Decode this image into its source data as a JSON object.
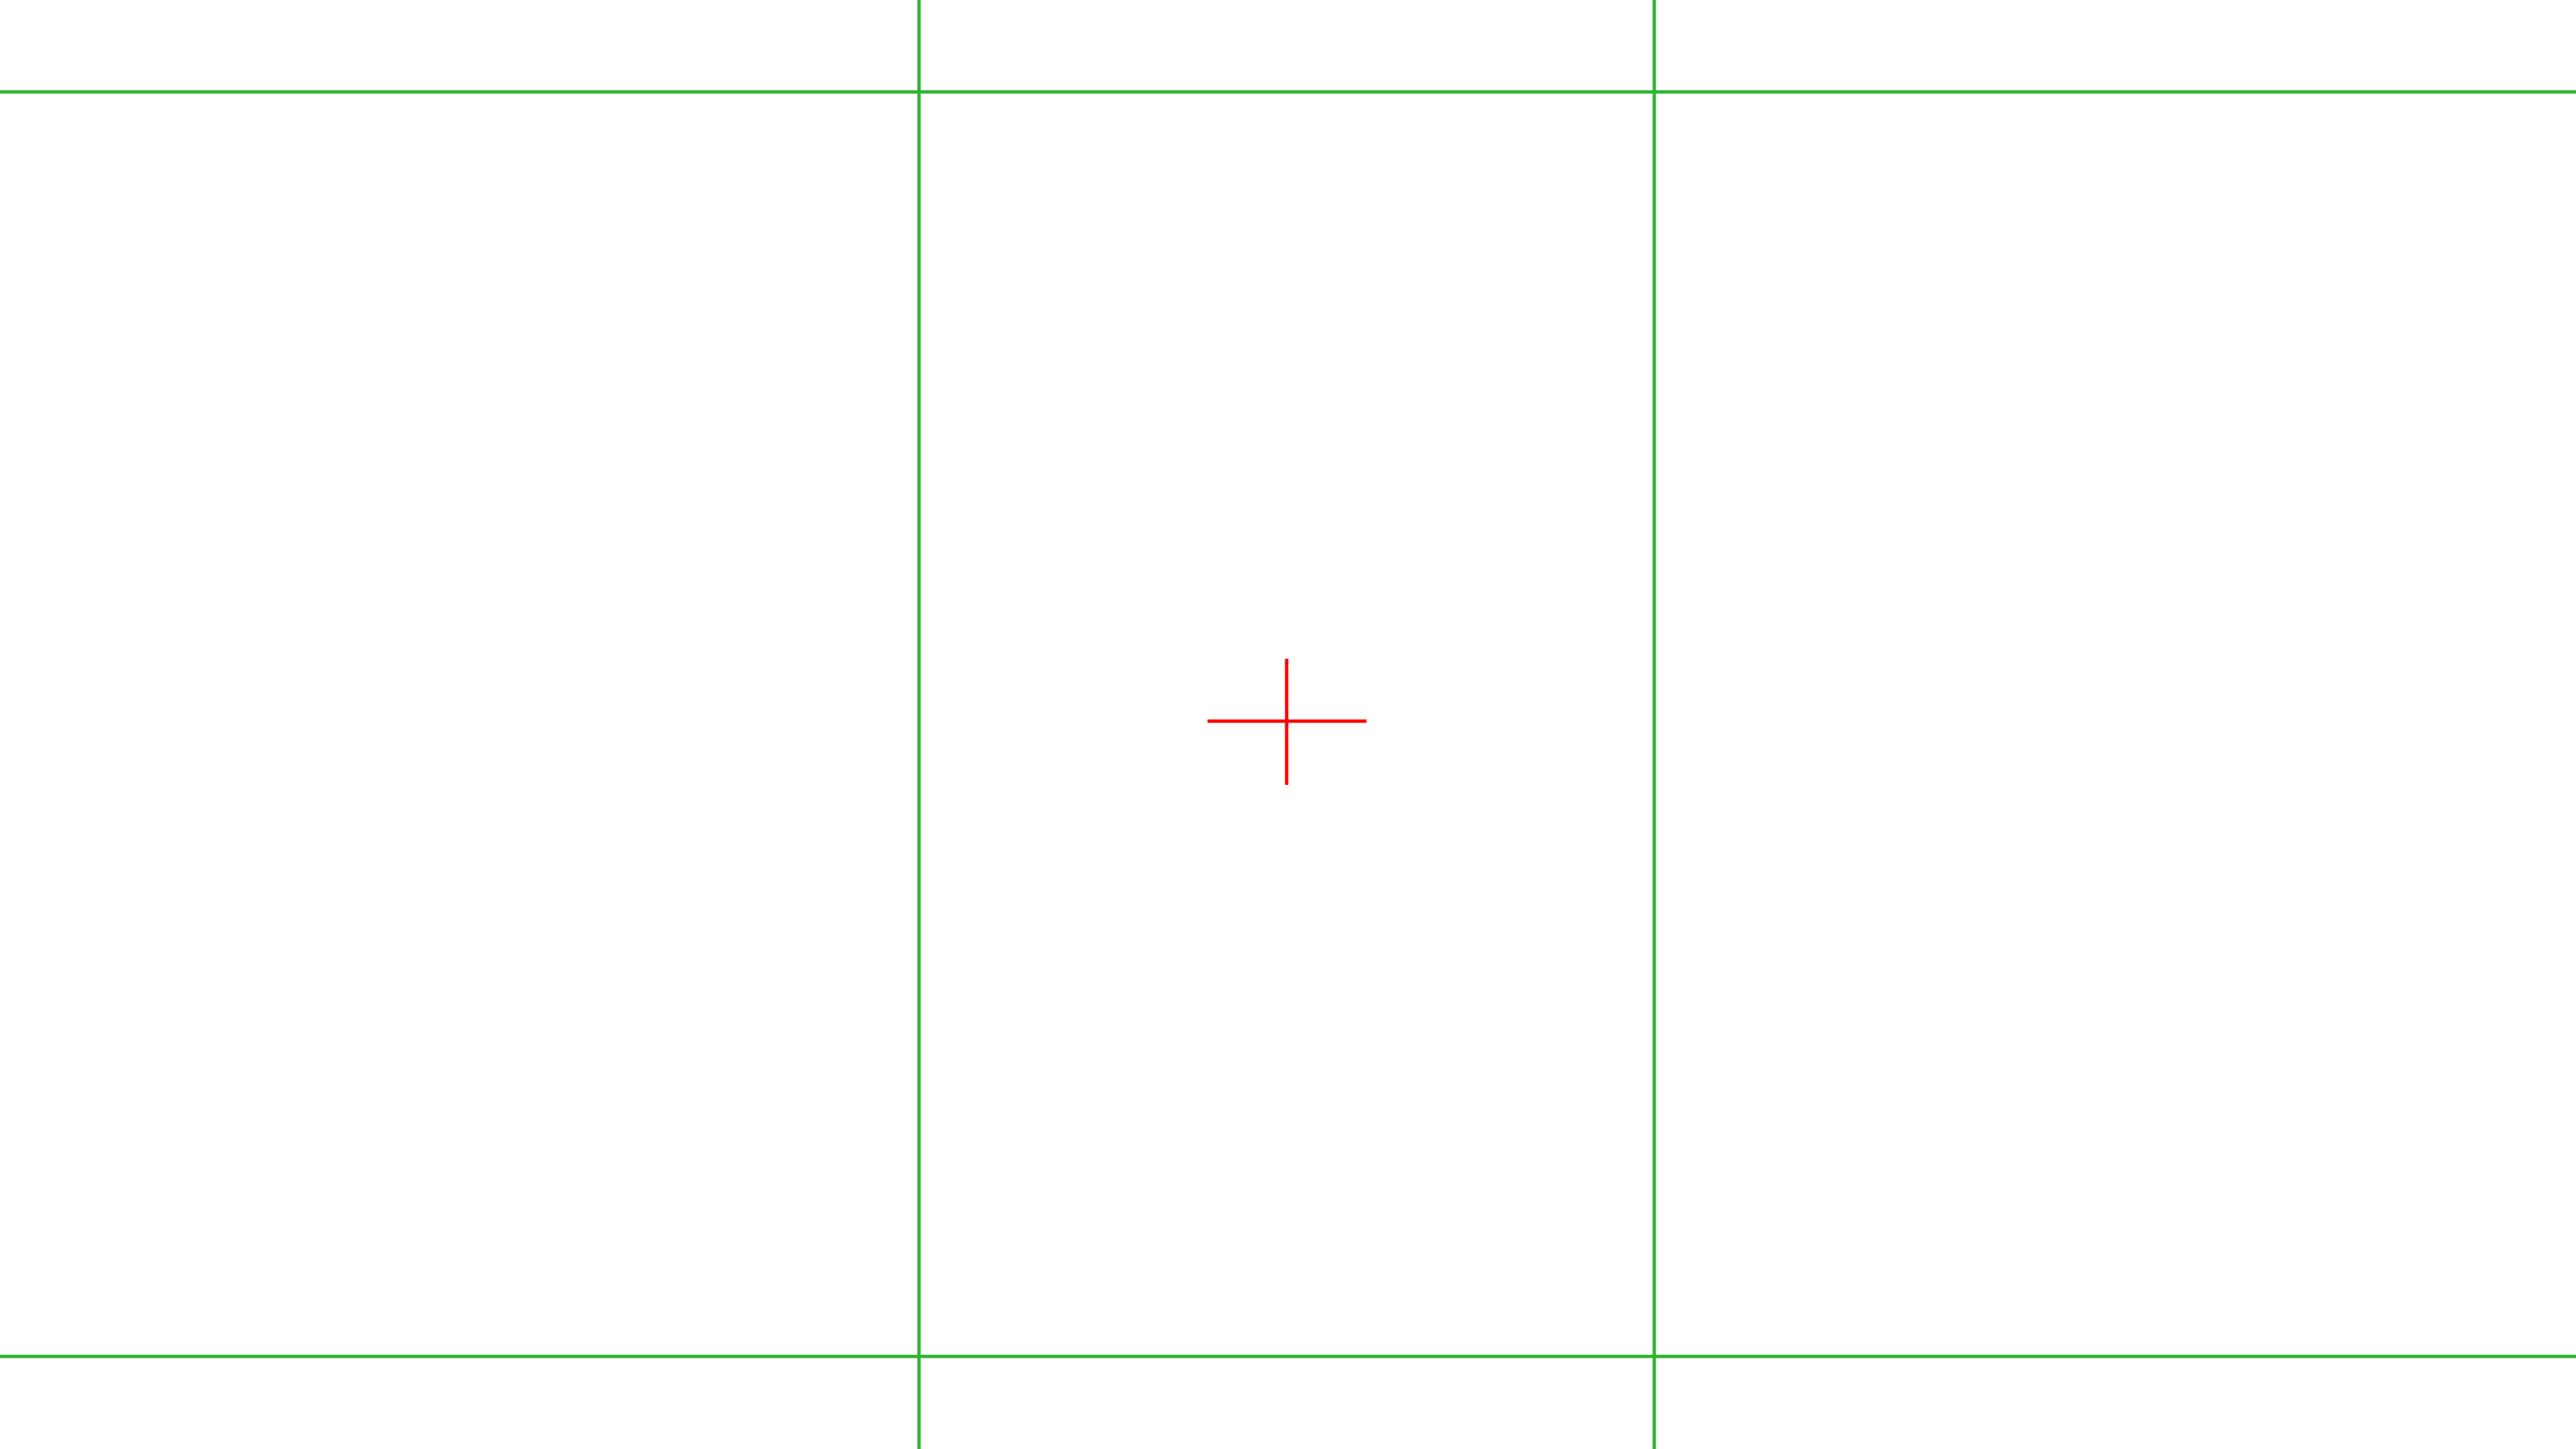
{
  "screen": {
    "background": "#ffffff"
  },
  "guides": {
    "color": "#2db52d",
    "horizontal": [
      {
        "name": "top-guide-line"
      },
      {
        "name": "bottom-guide-line"
      }
    ],
    "vertical": [
      {
        "name": "left-guide-line"
      },
      {
        "name": "right-guide-line"
      }
    ]
  },
  "crosshair": {
    "color": "#ff0000",
    "icon": "crosshair-icon"
  }
}
